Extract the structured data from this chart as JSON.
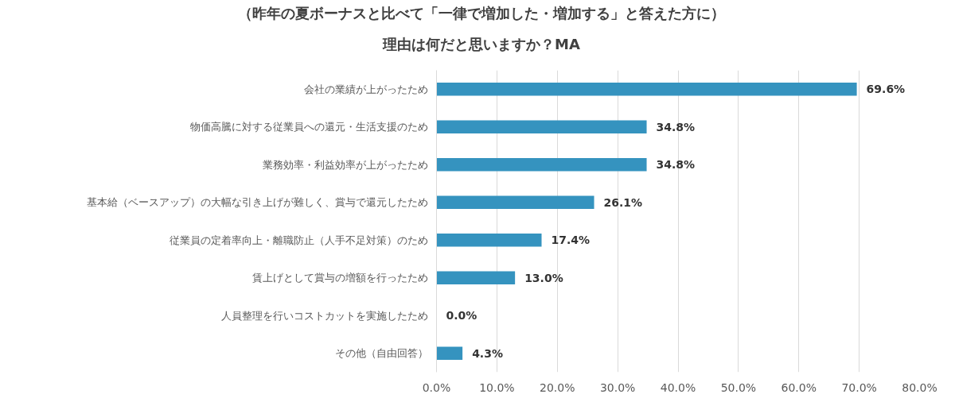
{
  "chart_data": {
    "type": "bar",
    "orientation": "horizontal",
    "title": "（昨年の夏ボーナスと比べて「一律で増加した・増加する」と答えた方に）",
    "subtitle": "理由は何だと思いますか？MA",
    "categories": [
      "会社の業績が上がったため",
      "物価高騰に対する従業員への還元・生活支援のため",
      "業務効率・利益効率が上がったため",
      "基本給（ベースアップ）の大幅な引き上げが難しく、賞与で還元したため",
      "従業員の定着率向上・離職防止（人手不足対策）のため",
      "賃上げとして賞与の増額を行ったため",
      "人員整理を行いコストカットを実施したため",
      "その他（自由回答）"
    ],
    "values": [
      69.6,
      34.8,
      34.8,
      26.1,
      17.4,
      13.0,
      0.0,
      4.3
    ],
    "value_labels": [
      "69.6%",
      "34.8%",
      "34.8%",
      "26.1%",
      "17.4%",
      "13.0%",
      "0.0%",
      "4.3%"
    ],
    "color": "#3593bf",
    "xlim": [
      0,
      80
    ],
    "xticks": [
      {
        "value": 0,
        "label": "0.0%"
      },
      {
        "value": 10,
        "label": "10.0%"
      },
      {
        "value": 20,
        "label": "20.0%"
      },
      {
        "value": 30,
        "label": "30.0%"
      },
      {
        "value": 40,
        "label": "40.0%"
      },
      {
        "value": 50,
        "label": "50.0%"
      },
      {
        "value": 60,
        "label": "60.0%"
      },
      {
        "value": 70,
        "label": "70.0%"
      },
      {
        "value": 80,
        "label": "80.0%"
      }
    ],
    "grid": "x"
  }
}
